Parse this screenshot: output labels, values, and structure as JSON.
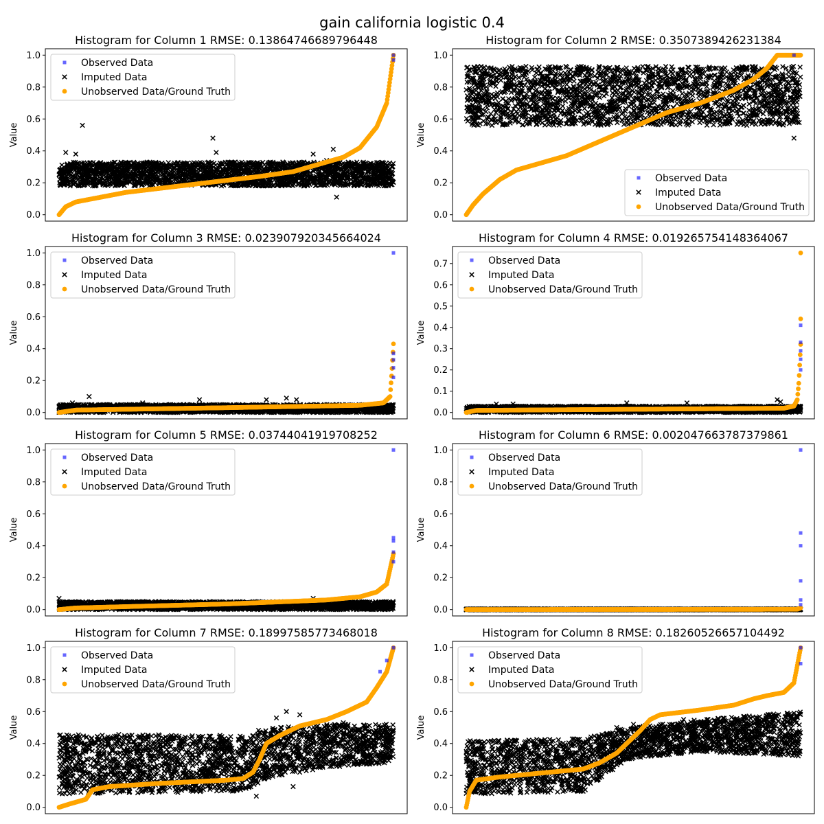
{
  "figure_title": "gain california logistic 0.4",
  "legend_labels": {
    "observed": "Observed Data",
    "imputed": "Imputed Data",
    "ground_truth": "Unobserved Data/Ground Truth"
  },
  "colors": {
    "observed": "#0000ff",
    "imputed": "#000000",
    "ground_truth": "#ffa500"
  },
  "chart_data": [
    {
      "type": "scatter",
      "title": "Histogram for Column 1 RMSE: 0.13864746689796448",
      "ylabel": "Value",
      "ylim": [
        -0.04,
        1.04
      ],
      "yticks": [
        "0.0",
        "0.2",
        "0.4",
        "0.6",
        "0.8",
        "1.0"
      ],
      "legend_position": "upper-left",
      "x_count": 6000,
      "ground_truth_curve": [
        [
          0,
          0.0
        ],
        [
          0.02,
          0.05
        ],
        [
          0.05,
          0.08
        ],
        [
          0.1,
          0.1
        ],
        [
          0.2,
          0.14
        ],
        [
          0.3,
          0.165
        ],
        [
          0.4,
          0.19
        ],
        [
          0.5,
          0.215
        ],
        [
          0.6,
          0.24
        ],
        [
          0.7,
          0.27
        ],
        [
          0.75,
          0.3
        ],
        [
          0.85,
          0.36
        ],
        [
          0.9,
          0.42
        ],
        [
          0.95,
          0.55
        ],
        [
          0.98,
          0.7
        ],
        [
          1.0,
          1.0
        ]
      ],
      "imputed_band": [
        [
          0.0,
          0.18,
          0.33
        ],
        [
          1.0,
          0.18,
          0.33
        ]
      ],
      "imputed_outliers": [
        [
          0.02,
          0.39
        ],
        [
          0.05,
          0.38
        ],
        [
          0.07,
          0.56
        ],
        [
          0.46,
          0.48
        ],
        [
          0.47,
          0.39
        ],
        [
          0.76,
          0.38
        ],
        [
          0.8,
          0.34
        ],
        [
          0.82,
          0.41
        ],
        [
          0.83,
          0.11
        ]
      ],
      "observed_points": [
        [
          1.0,
          1.0
        ],
        [
          1.0,
          0.97
        ]
      ]
    },
    {
      "type": "scatter",
      "title": "Histogram for Column 2 RMSE: 0.3507389426231384",
      "ylabel": "Value",
      "ylim": [
        -0.04,
        1.04
      ],
      "yticks": [
        "0.0",
        "0.2",
        "0.4",
        "0.6",
        "0.8",
        "1.0"
      ],
      "legend_position": "lower-right",
      "x_count": 6000,
      "ground_truth_curve": [
        [
          0,
          0.0
        ],
        [
          0.02,
          0.06
        ],
        [
          0.05,
          0.13
        ],
        [
          0.1,
          0.22
        ],
        [
          0.15,
          0.28
        ],
        [
          0.2,
          0.31
        ],
        [
          0.3,
          0.37
        ],
        [
          0.4,
          0.46
        ],
        [
          0.5,
          0.55
        ],
        [
          0.6,
          0.64
        ],
        [
          0.7,
          0.7
        ],
        [
          0.8,
          0.78
        ],
        [
          0.86,
          0.85
        ],
        [
          0.9,
          0.92
        ],
        [
          0.93,
          1.0
        ],
        [
          1.0,
          1.0
        ]
      ],
      "imputed_band": [
        [
          0.0,
          0.56,
          0.93
        ],
        [
          1.0,
          0.56,
          0.93
        ]
      ],
      "imputed_outliers": [
        [
          0.98,
          0.48
        ]
      ],
      "observed_points": [
        [
          0.98,
          1.0
        ]
      ]
    },
    {
      "type": "scatter",
      "title": "Histogram for Column 3 RMSE: 0.023907920345664024",
      "ylabel": "Value",
      "ylim": [
        -0.04,
        1.04
      ],
      "yticks": [
        "0.0",
        "0.2",
        "0.4",
        "0.6",
        "0.8",
        "1.0"
      ],
      "legend_position": "upper-left",
      "x_count": 6000,
      "ground_truth_curve": [
        [
          0,
          0.0
        ],
        [
          0.05,
          0.015
        ],
        [
          0.5,
          0.03
        ],
        [
          0.9,
          0.045
        ],
        [
          0.97,
          0.06
        ],
        [
          0.99,
          0.1
        ],
        [
          0.995,
          0.25
        ],
        [
          1.0,
          0.43
        ]
      ],
      "imputed_band": [
        [
          0.0,
          0.0,
          0.05
        ],
        [
          1.0,
          0.0,
          0.05
        ]
      ],
      "imputed_outliers": [
        [
          0.04,
          0.06
        ],
        [
          0.09,
          0.1
        ],
        [
          0.25,
          0.06
        ],
        [
          0.42,
          0.08
        ],
        [
          0.62,
          0.08
        ],
        [
          0.68,
          0.09
        ],
        [
          0.71,
          0.08
        ]
      ],
      "observed_points": [
        [
          1.0,
          1.0
        ],
        [
          1.0,
          0.37
        ],
        [
          1.0,
          0.33
        ],
        [
          1.0,
          0.28
        ],
        [
          1.0,
          0.22
        ]
      ]
    },
    {
      "type": "scatter",
      "title": "Histogram for Column 4 RMSE: 0.019265754148364067",
      "ylabel": "Value",
      "ylim": [
        -0.03,
        0.78
      ],
      "yticks": [
        "0.0",
        "0.1",
        "0.2",
        "0.3",
        "0.4",
        "0.5",
        "0.6",
        "0.7"
      ],
      "legend_position": "upper-left",
      "x_count": 6000,
      "ground_truth_curve": [
        [
          0,
          0.0
        ],
        [
          0.03,
          0.01
        ],
        [
          0.5,
          0.015
        ],
        [
          0.95,
          0.02
        ],
        [
          0.98,
          0.03
        ],
        [
          0.99,
          0.06
        ],
        [
          0.995,
          0.15
        ],
        [
          1.0,
          0.32
        ]
      ],
      "imputed_band": [
        [
          0.0,
          0.0,
          0.03
        ],
        [
          1.0,
          0.0,
          0.03
        ]
      ],
      "imputed_outliers": [
        [
          0.09,
          0.04
        ],
        [
          0.14,
          0.04
        ],
        [
          0.48,
          0.045
        ],
        [
          0.66,
          0.045
        ],
        [
          0.93,
          0.06
        ],
        [
          0.94,
          0.05
        ]
      ],
      "observed_points": [
        [
          1.0,
          0.41
        ],
        [
          1.0,
          0.33
        ],
        [
          1.0,
          0.29
        ],
        [
          1.0,
          0.25
        ],
        [
          1.0,
          0.2
        ]
      ],
      "ground_truth_outliers": [
        [
          1.0,
          0.75
        ],
        [
          1.0,
          0.44
        ]
      ]
    },
    {
      "type": "scatter",
      "title": "Histogram for Column 5 RMSE: 0.03744041919708252",
      "ylabel": "Value",
      "ylim": [
        -0.04,
        1.04
      ],
      "yticks": [
        "0.0",
        "0.2",
        "0.4",
        "0.6",
        "0.8",
        "1.0"
      ],
      "legend_position": "upper-left",
      "x_count": 6000,
      "ground_truth_curve": [
        [
          0,
          0.0
        ],
        [
          0.05,
          0.01
        ],
        [
          0.5,
          0.035
        ],
        [
          0.8,
          0.06
        ],
        [
          0.9,
          0.08
        ],
        [
          0.95,
          0.11
        ],
        [
          0.98,
          0.16
        ],
        [
          1.0,
          0.35
        ]
      ],
      "imputed_band": [
        [
          0.0,
          0.0,
          0.05
        ],
        [
          1.0,
          0.0,
          0.05
        ]
      ],
      "imputed_outliers": [
        [
          0.0,
          0.07
        ],
        [
          0.76,
          0.07
        ],
        [
          0.86,
          0.07
        ]
      ],
      "observed_points": [
        [
          1.0,
          1.0
        ],
        [
          1.0,
          0.45
        ],
        [
          1.0,
          0.43
        ],
        [
          1.0,
          0.36
        ],
        [
          1.0,
          0.3
        ]
      ]
    },
    {
      "type": "scatter",
      "title": "Histogram for Column 6 RMSE: 0.002047663787379861",
      "ylabel": "Value",
      "ylim": [
        -0.04,
        1.04
      ],
      "yticks": [
        "0.0",
        "0.2",
        "0.4",
        "0.6",
        "0.8",
        "1.0"
      ],
      "legend_position": "upper-left",
      "x_count": 6000,
      "ground_truth_curve": [
        [
          0,
          0.0
        ],
        [
          0.99,
          0.002
        ],
        [
          1.0,
          0.01
        ]
      ],
      "imputed_band": [
        [
          0.0,
          -0.002,
          0.004
        ],
        [
          1.0,
          -0.002,
          0.004
        ]
      ],
      "imputed_outliers": [],
      "observed_points": [
        [
          1.0,
          1.0
        ],
        [
          1.0,
          0.48
        ],
        [
          1.0,
          0.4
        ],
        [
          1.0,
          0.18
        ],
        [
          1.0,
          0.06
        ],
        [
          1.0,
          0.03
        ]
      ]
    },
    {
      "type": "scatter",
      "title": "Histogram for Column 7 RMSE: 0.18997585773468018",
      "ylabel": "Value",
      "ylim": [
        -0.04,
        1.04
      ],
      "yticks": [
        "0.0",
        "0.2",
        "0.4",
        "0.6",
        "0.8",
        "1.0"
      ],
      "legend_position": "upper-left",
      "x_count": 6000,
      "ground_truth_curve": [
        [
          0,
          0.0
        ],
        [
          0.03,
          0.02
        ],
        [
          0.08,
          0.05
        ],
        [
          0.1,
          0.11
        ],
        [
          0.15,
          0.13
        ],
        [
          0.3,
          0.15
        ],
        [
          0.5,
          0.17
        ],
        [
          0.55,
          0.18
        ],
        [
          0.58,
          0.22
        ],
        [
          0.6,
          0.3
        ],
        [
          0.62,
          0.4
        ],
        [
          0.66,
          0.45
        ],
        [
          0.72,
          0.51
        ],
        [
          0.8,
          0.55
        ],
        [
          0.86,
          0.6
        ],
        [
          0.92,
          0.66
        ],
        [
          0.95,
          0.75
        ],
        [
          0.98,
          0.85
        ],
        [
          1.0,
          1.0
        ]
      ],
      "imputed_band": [
        [
          0.0,
          0.08,
          0.46
        ],
        [
          0.55,
          0.1,
          0.45
        ],
        [
          0.62,
          0.18,
          0.5
        ],
        [
          0.8,
          0.25,
          0.52
        ],
        [
          1.0,
          0.28,
          0.52
        ]
      ],
      "imputed_outliers": [
        [
          0.59,
          0.07
        ],
        [
          0.65,
          0.56
        ],
        [
          0.68,
          0.6
        ],
        [
          0.72,
          0.58
        ],
        [
          0.8,
          0.51
        ],
        [
          0.85,
          0.53
        ],
        [
          0.62,
          0.19
        ],
        [
          0.55,
          0.12
        ],
        [
          0.7,
          0.13
        ]
      ],
      "observed_points": [
        [
          0.96,
          0.85
        ],
        [
          0.98,
          0.92
        ],
        [
          1.0,
          1.0
        ]
      ]
    },
    {
      "type": "scatter",
      "title": "Histogram for Column 8 RMSE: 0.18260526657104492",
      "ylabel": "Value",
      "ylim": [
        -0.04,
        1.04
      ],
      "yticks": [
        "0.0",
        "0.2",
        "0.4",
        "0.6",
        "0.8",
        "1.0"
      ],
      "legend_position": "upper-left",
      "x_count": 6000,
      "ground_truth_curve": [
        [
          0,
          0.0
        ],
        [
          0.01,
          0.1
        ],
        [
          0.03,
          0.17
        ],
        [
          0.1,
          0.19
        ],
        [
          0.2,
          0.21
        ],
        [
          0.3,
          0.23
        ],
        [
          0.35,
          0.24
        ],
        [
          0.4,
          0.28
        ],
        [
          0.45,
          0.34
        ],
        [
          0.48,
          0.4
        ],
        [
          0.52,
          0.48
        ],
        [
          0.55,
          0.55
        ],
        [
          0.58,
          0.58
        ],
        [
          0.7,
          0.61
        ],
        [
          0.8,
          0.64
        ],
        [
          0.86,
          0.68
        ],
        [
          0.9,
          0.7
        ],
        [
          0.95,
          0.72
        ],
        [
          0.98,
          0.78
        ],
        [
          1.0,
          1.0
        ]
      ],
      "imputed_band": [
        [
          0.0,
          0.08,
          0.42
        ],
        [
          0.35,
          0.1,
          0.43
        ],
        [
          0.48,
          0.3,
          0.5
        ],
        [
          0.7,
          0.35,
          0.55
        ],
        [
          1.0,
          0.32,
          0.6
        ]
      ],
      "imputed_outliers": [
        [
          0.45,
          0.5
        ],
        [
          0.5,
          0.52
        ],
        [
          0.65,
          0.55
        ],
        [
          0.04,
          0.1
        ]
      ],
      "observed_points": [
        [
          1.0,
          1.0
        ],
        [
          1.0,
          0.9
        ]
      ]
    }
  ]
}
